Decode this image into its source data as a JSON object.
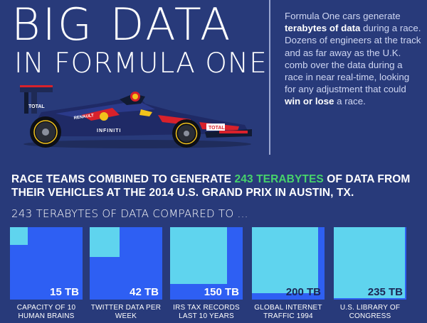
{
  "title": {
    "line1": "BIG DATA",
    "line2": "IN FORMULA ONE"
  },
  "intro": {
    "part1": "Formula One cars generate ",
    "bold1": "terabytes of data",
    "part2": " during a race. Dozens of engineers at the track and as far away as the U.K. comb over the data during a race in near real-time, looking for any adjustment that could ",
    "bold2": "win or lose",
    "part3": " a race."
  },
  "car": {
    "sponsor_total": "TOTAL",
    "sponsor_infiniti": "INFINITI",
    "sponsor_renault": "RENAULT"
  },
  "headline": {
    "before": "RACE TEAMS COMBINED TO GENERATE ",
    "highlight": "243 TERABYTES",
    "after": " OF DATA FROM THEIR VEHICLES AT THE 2014 U.S. GRAND PRIX IN AUSTIN, TX."
  },
  "subhead": "243 TERABYTES OF DATA COMPARED TO ...",
  "colors": {
    "background": "#283a7a",
    "box_blue": "#2e5ff3",
    "box_fill": "#5fd4ee",
    "highlight_green": "#47d36b"
  },
  "comparisons": [
    {
      "value": "15 TB",
      "amount": 15,
      "line1": "CAPACITY OF 10",
      "line2": "HUMAN BRAINS"
    },
    {
      "value": "42 TB",
      "amount": 42,
      "line1": "TWITTER DATA PER",
      "line2": "WEEK"
    },
    {
      "value": "150 TB",
      "amount": 150,
      "line1": "IRS TAX RECORDS",
      "line2": "LAST 10 YEARS"
    },
    {
      "value": "200 TB",
      "amount": 200,
      "line1": "GLOBAL INTERNET",
      "line2": "TRAFFIC 1994"
    },
    {
      "value": "235 TB",
      "amount": 235,
      "line1": "U.S. LIBRARY OF",
      "line2": "CONGRESS"
    }
  ],
  "total_amount": 243
}
